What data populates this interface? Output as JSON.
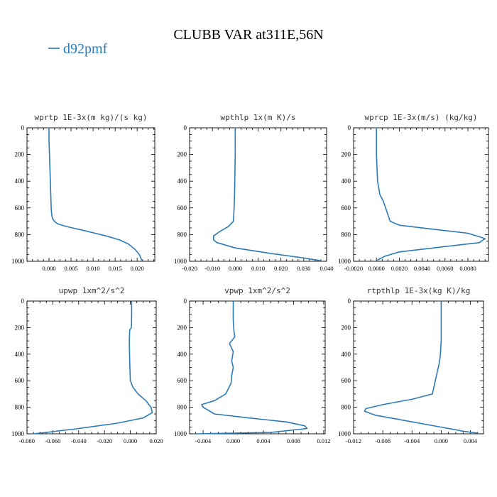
{
  "figure": {
    "title": "CLUBB VAR at311E,56N",
    "legend": {
      "label": "d92pmf",
      "color": "#2b7bb9"
    }
  },
  "chart_data": [
    {
      "type": "line",
      "title": "wprtp  1E-3x(m kg)/(s kg)",
      "xlim": [
        -0.005,
        0.024
      ],
      "ylim": [
        1000,
        0
      ],
      "xticks": [
        0.0,
        0.005,
        0.01,
        0.015,
        0.02
      ],
      "xticklabels": [
        "0.000",
        "0.005",
        "0.010",
        "0.015",
        "0.020"
      ],
      "yticks": [
        0,
        200,
        400,
        600,
        800,
        1000
      ],
      "series": [
        {
          "x": [
            0.0,
            0.0,
            0.0001,
            0.0002,
            0.0003,
            0.0004,
            0.0005,
            0.0006,
            0.0008,
            0.0012,
            0.002,
            0.004,
            0.008,
            0.013,
            0.016,
            0.018,
            0.0195,
            0.0205,
            0.021
          ],
          "y": [
            0,
            100,
            200,
            300,
            400,
            500,
            600,
            650,
            680,
            700,
            720,
            740,
            770,
            810,
            840,
            870,
            910,
            950,
            990
          ]
        }
      ]
    },
    {
      "type": "line",
      "title": "wpthlp  1x(m K)/s",
      "xlim": [
        -0.02,
        0.04
      ],
      "ylim": [
        1000,
        0
      ],
      "xticks": [
        -0.02,
        -0.01,
        0.0,
        0.01,
        0.02,
        0.03,
        0.04
      ],
      "xticklabels": [
        "-0.020",
        "-0.010",
        "0.000",
        "0.010",
        "0.020",
        "0.030",
        "0.040"
      ],
      "yticks": [
        0,
        200,
        400,
        600,
        800,
        1000
      ],
      "series": [
        {
          "x": [
            0.0,
            0.0,
            -0.0001,
            -0.0002,
            -0.0003,
            -0.0005,
            -0.0008,
            -0.003,
            -0.007,
            -0.0095,
            -0.0095,
            -0.008,
            0.0,
            0.015,
            0.03,
            0.037
          ],
          "y": [
            0,
            200,
            300,
            400,
            500,
            600,
            700,
            740,
            780,
            810,
            840,
            860,
            900,
            940,
            975,
            995
          ]
        }
      ]
    },
    {
      "type": "line",
      "title": "wprcp  1E-3x(m/s) (kg/kg)",
      "xlim": [
        -0.002,
        0.0098
      ],
      "ylim": [
        1000,
        0
      ],
      "xticks": [
        -0.002,
        0.0,
        0.002,
        0.004,
        0.006,
        0.008
      ],
      "xticklabels": [
        "-0.0020",
        "0.0000",
        "0.0020",
        "0.0040",
        "0.0060",
        "0.0080"
      ],
      "yticks": [
        0,
        200,
        400,
        600,
        800,
        1000
      ],
      "series": [
        {
          "x": [
            0.0,
            0.0,
            0.0001,
            0.0003,
            0.0006,
            0.0008,
            0.001,
            0.0012,
            0.002,
            0.005,
            0.008,
            0.0095,
            0.009,
            0.006,
            0.002,
            0.0008,
            0.0001
          ],
          "y": [
            0,
            200,
            400,
            500,
            550,
            600,
            650,
            700,
            730,
            760,
            790,
            830,
            860,
            890,
            930,
            960,
            990
          ]
        }
      ]
    },
    {
      "type": "line",
      "title": "upwp  1xm^2/s^2",
      "xlim": [
        -0.08,
        0.02
      ],
      "ylim": [
        1000,
        0
      ],
      "xticks": [
        -0.08,
        -0.06,
        -0.04,
        -0.02,
        0.0,
        0.02
      ],
      "xticklabels": [
        "-0.080",
        "-0.060",
        "-0.040",
        "-0.020",
        "0.000",
        "0.020"
      ],
      "yticks": [
        0,
        200,
        400,
        600,
        800,
        1000
      ],
      "series": [
        {
          "x": [
            0.001,
            0.001,
            0.0008,
            -0.0005,
            -0.0008,
            -0.0006,
            -0.0004,
            0.0,
            0.002,
            0.006,
            0.012,
            0.016,
            0.017,
            0.01,
            -0.01,
            -0.04,
            -0.065,
            -0.075
          ],
          "y": [
            0,
            100,
            200,
            220,
            300,
            400,
            500,
            600,
            650,
            700,
            750,
            800,
            840,
            880,
            920,
            960,
            990,
            1000
          ]
        }
      ]
    },
    {
      "type": "line",
      "title": "vpwp  1xm^2/s^2",
      "xlim": [
        -0.0058,
        0.0122
      ],
      "ylim": [
        1000,
        0
      ],
      "xticks": [
        -0.004,
        0.0,
        0.004,
        0.008,
        0.012
      ],
      "xticklabels": [
        "-0.004",
        "0.000",
        "0.004",
        "0.008",
        "0.012"
      ],
      "yticks": [
        0,
        200,
        400,
        600,
        800,
        1000
      ],
      "series": [
        {
          "x": [
            0.0,
            0.0,
            0.0001,
            0.0002,
            -0.0005,
            0.0,
            -0.0002,
            0.0,
            -0.0002,
            -0.0003,
            -0.001,
            -0.0025,
            -0.0042,
            -0.004,
            -0.0025,
            0.002,
            0.007,
            0.0095,
            0.0098,
            0.005,
            -0.005
          ],
          "y": [
            0,
            150,
            230,
            270,
            320,
            380,
            450,
            500,
            560,
            620,
            700,
            750,
            780,
            800,
            850,
            880,
            910,
            940,
            960,
            990,
            1000
          ]
        }
      ]
    },
    {
      "type": "line",
      "title": "rtpthlp  1E-3x(kg K)/kg",
      "xlim": [
        -0.012,
        0.0058
      ],
      "ylim": [
        1000,
        0
      ],
      "xticks": [
        -0.012,
        -0.008,
        -0.004,
        0.0,
        0.004
      ],
      "xticklabels": [
        "-0.012",
        "-0.008",
        "-0.004",
        "0.000",
        "0.004"
      ],
      "yticks": [
        0,
        200,
        400,
        600,
        800,
        1000
      ],
      "series": [
        {
          "x": [
            0.0,
            0.0,
            -0.0001,
            -0.0002,
            -0.0004,
            -0.0006,
            -0.0008,
            -0.0012,
            -0.004,
            -0.008,
            -0.0103,
            -0.0105,
            -0.009,
            -0.005,
            0.0,
            0.003,
            0.005
          ],
          "y": [
            0,
            300,
            400,
            450,
            500,
            550,
            600,
            700,
            740,
            780,
            810,
            830,
            860,
            900,
            950,
            980,
            995
          ]
        }
      ]
    }
  ]
}
